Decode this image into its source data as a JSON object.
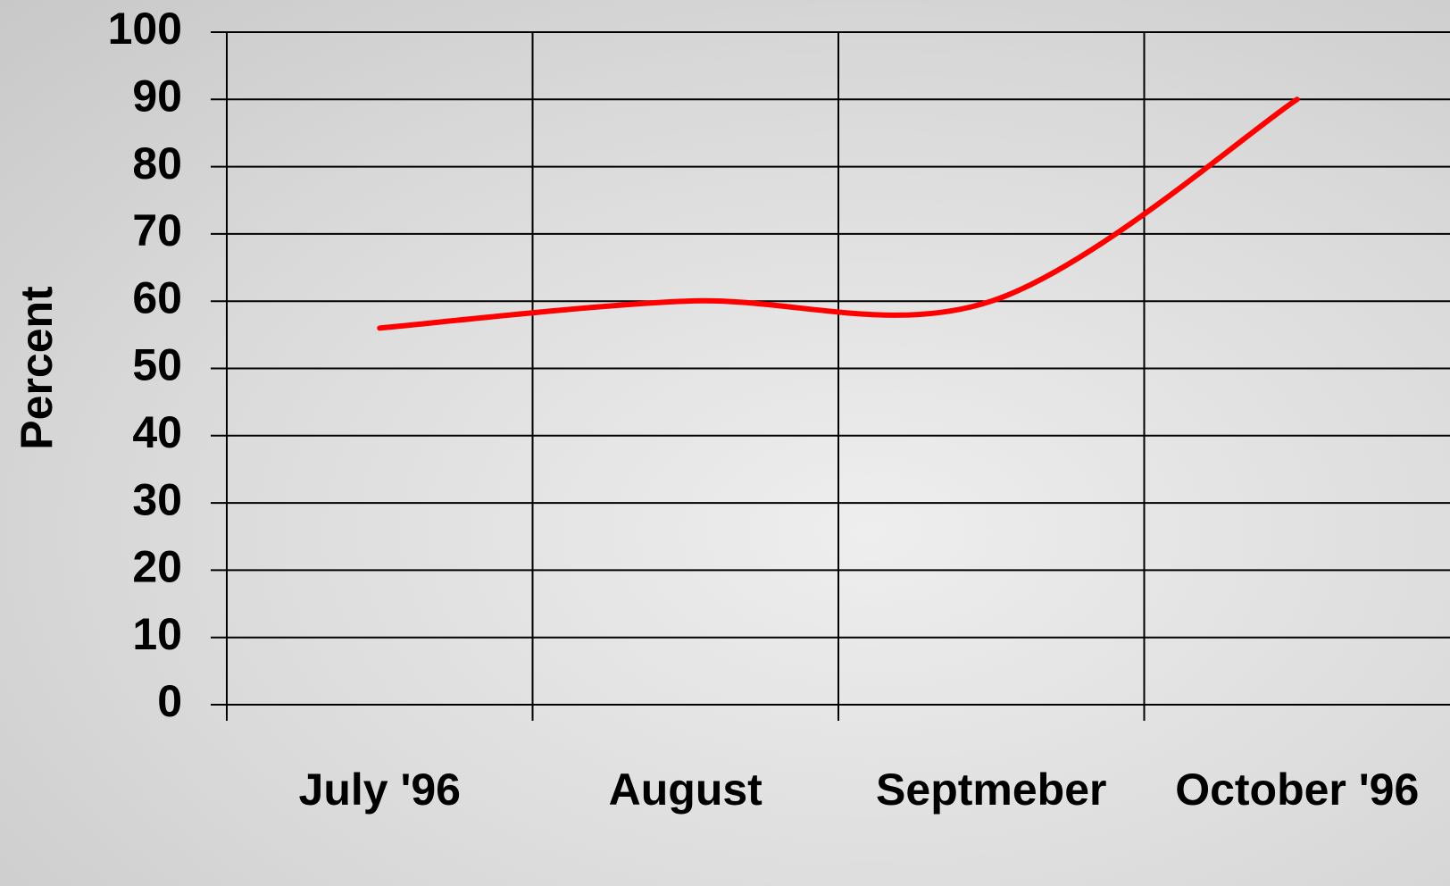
{
  "chart_data": {
    "type": "line",
    "y_label": "Percent",
    "categories": [
      "July '96",
      "August",
      "Septmeber",
      "October '96"
    ],
    "series": [
      {
        "name": "Percent",
        "color": "#ff0000",
        "values": [
          56,
          60,
          60,
          90
        ]
      }
    ],
    "ylim": [
      0,
      100
    ],
    "yticks": [
      0,
      10,
      20,
      30,
      40,
      50,
      60,
      70,
      80,
      90,
      100
    ],
    "grid": true,
    "smooth": true
  }
}
